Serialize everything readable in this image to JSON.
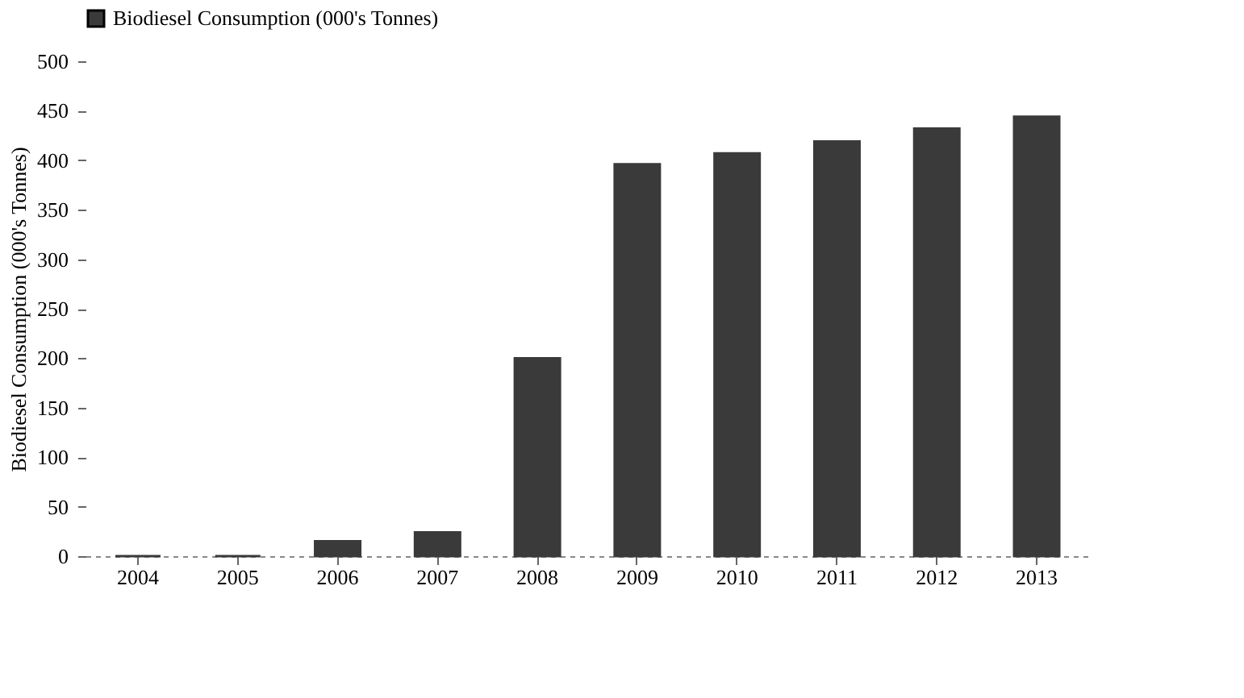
{
  "chart_data": {
    "type": "bar",
    "categories": [
      "2004",
      "2005",
      "2006",
      "2007",
      "2008",
      "2009",
      "2010",
      "2011",
      "2012",
      "2013"
    ],
    "series": [
      {
        "name": "Biodiesel Consumption (000's Tonnes)",
        "color": "#3a3a3a",
        "values": [
          0,
          0,
          15,
          24,
          200,
          396,
          407,
          419,
          432,
          444
        ]
      }
    ],
    "ylabel": "Biodiesel Consumption (000's Tonnes)",
    "ylim": [
      0,
      500
    ],
    "yticks": [
      0,
      50,
      100,
      150,
      200,
      250,
      300,
      350,
      400,
      450,
      500
    ],
    "grid": false,
    "legend": "top"
  }
}
